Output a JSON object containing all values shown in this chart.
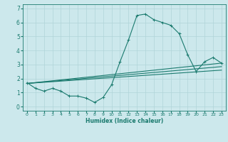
{
  "xlabel": "Humidex (Indice chaleur)",
  "ylabel": "",
  "bg_color": "#cce8ec",
  "grid_color": "#b0d4d8",
  "line_color": "#1a7a6e",
  "xlim": [
    -0.5,
    23.5
  ],
  "ylim": [
    -0.3,
    7.3
  ],
  "xticks": [
    0,
    1,
    2,
    3,
    4,
    5,
    6,
    7,
    8,
    9,
    10,
    11,
    12,
    13,
    14,
    15,
    16,
    17,
    18,
    19,
    20,
    21,
    22,
    23
  ],
  "yticks": [
    0,
    1,
    2,
    3,
    4,
    5,
    6,
    7
  ],
  "lines": [
    {
      "x": [
        0,
        1,
        2,
        3,
        4,
        5,
        6,
        7,
        8,
        9,
        10,
        11,
        12,
        13,
        14,
        15,
        16,
        17,
        18,
        19,
        20,
        21,
        22,
        23
      ],
      "y": [
        1.7,
        1.3,
        1.1,
        1.3,
        1.1,
        0.75,
        0.75,
        0.6,
        0.3,
        0.65,
        1.55,
        3.2,
        4.75,
        6.5,
        6.6,
        6.2,
        6.0,
        5.8,
        5.2,
        3.7,
        2.5,
        3.2,
        3.5,
        3.1
      ]
    },
    {
      "x": [
        0,
        23
      ],
      "y": [
        1.65,
        3.1
      ]
    },
    {
      "x": [
        0,
        23
      ],
      "y": [
        1.65,
        2.85
      ]
    },
    {
      "x": [
        0,
        23
      ],
      "y": [
        1.65,
        2.6
      ]
    }
  ]
}
